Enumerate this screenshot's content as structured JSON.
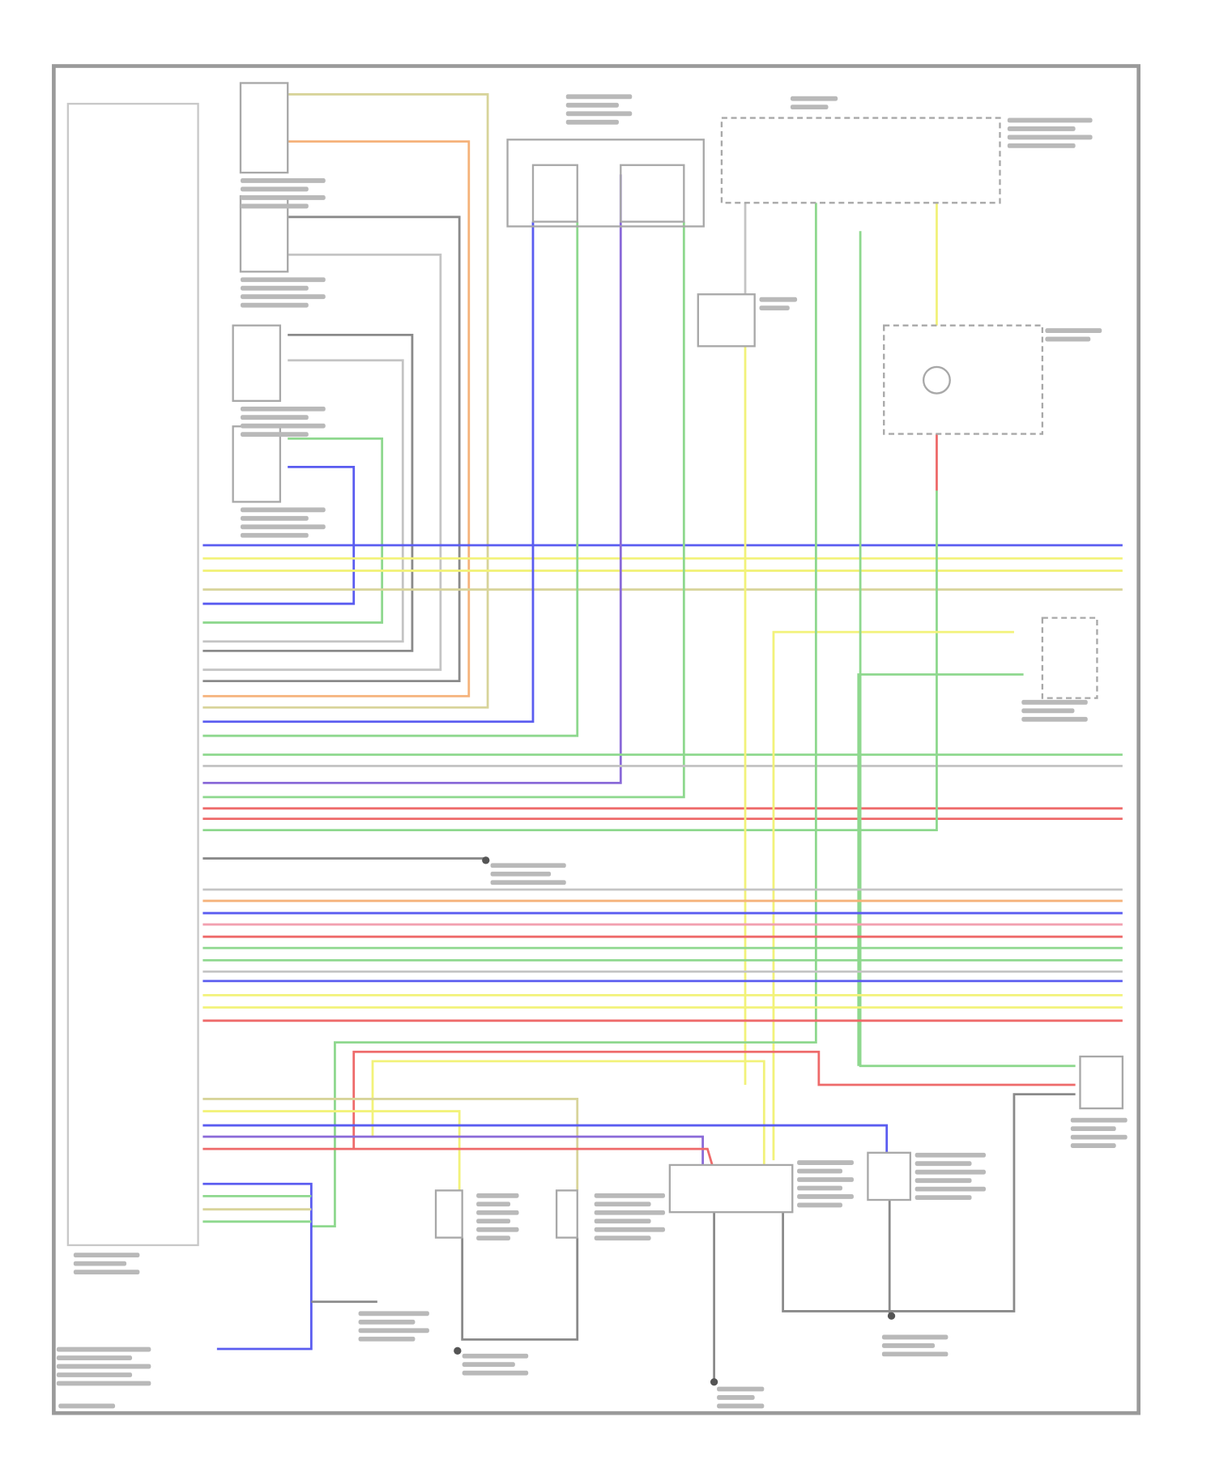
{
  "diagram": {
    "title": "",
    "note": "",
    "wire_colors": {
      "frame": "#9a9a9a",
      "component": "#a8a8a8",
      "label": "#b9b9b9",
      "blue": "#5a5cf0",
      "yellow": "#f2f27a",
      "khaki": "#d8d49a",
      "orange": "#f5b27a",
      "grey": "#8a8a8a",
      "light_grey": "#c4c4c4",
      "green": "#8ed88e",
      "purple": "#8a6ad8",
      "red": "#ee6a6a",
      "pink": "#f2a0b0",
      "dark": "#555555"
    }
  }
}
